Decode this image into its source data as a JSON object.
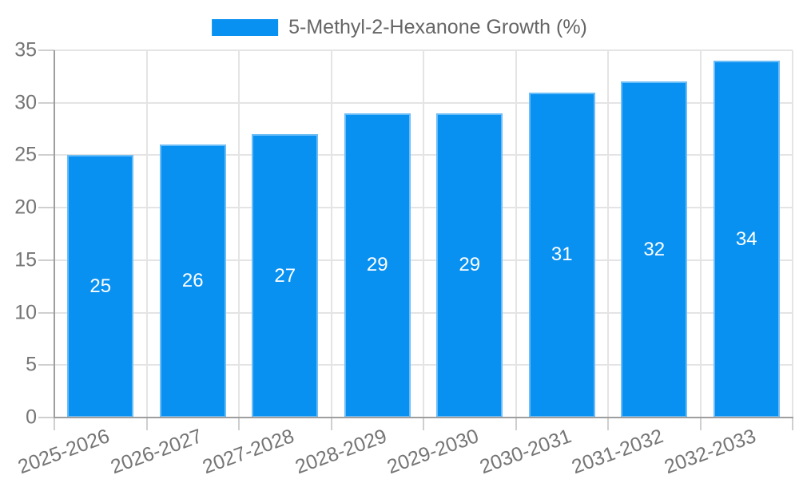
{
  "chart_data": {
    "type": "bar",
    "title": "5-Methyl-2-Hexanone Growth (%)",
    "categories": [
      "2025-2026",
      "2026-2027",
      "2027-2028",
      "2028-2029",
      "2029-2030",
      "2030-2031",
      "2031-2032",
      "2032-2033"
    ],
    "values": [
      25,
      26,
      27,
      29,
      29,
      31,
      32,
      34
    ],
    "xlabel": "",
    "ylabel": "",
    "ylim": [
      0,
      35
    ],
    "yticks": [
      0,
      5,
      10,
      15,
      20,
      25,
      30,
      35
    ],
    "grid": "horizontal gridlines at y ticks, vertical gridlines at category boundaries",
    "legend_position": "top-center",
    "value_labels": "white numbers centered inside bars",
    "x_label_rotation_deg": -20,
    "colors": {
      "bar": "#0991F2",
      "bar_border": "#6FB4EC",
      "value_label": "#FFFFFF",
      "axis_line": "#9E9E9E",
      "grid_line": "#E4E4E4",
      "tick_mark": "#CFCFCF",
      "tick_label": "#757575",
      "legend_text": "#666666",
      "background": "#FFFFFF"
    }
  }
}
